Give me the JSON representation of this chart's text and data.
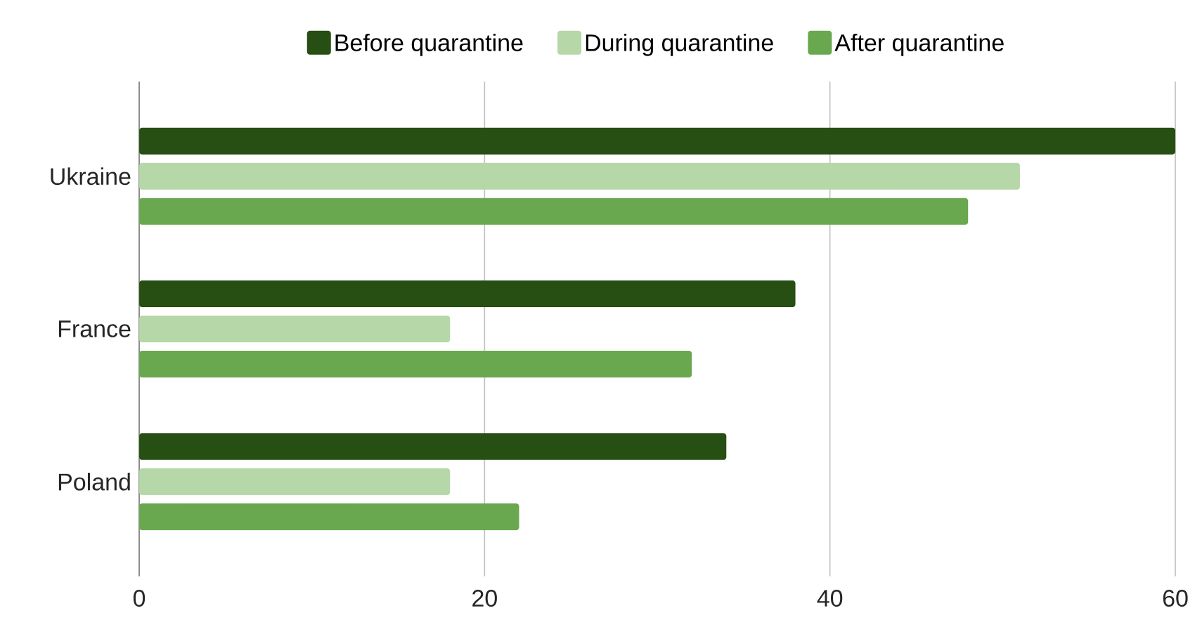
{
  "chart_data": {
    "type": "bar",
    "orientation": "horizontal",
    "categories": [
      "Ukraine",
      "France",
      "Poland"
    ],
    "series": [
      {
        "name": "Before quarantine",
        "color": "#274e13",
        "values": [
          60,
          38,
          34
        ]
      },
      {
        "name": "During quarantine",
        "color": "#b6d7a8",
        "values": [
          51,
          18,
          18
        ]
      },
      {
        "name": "After quarantine",
        "color": "#6aa84f",
        "values": [
          48,
          32,
          22
        ]
      }
    ],
    "xlim": [
      0,
      60
    ],
    "xticks": [
      0,
      20,
      40,
      60
    ],
    "grid": "x",
    "legend": "top"
  }
}
